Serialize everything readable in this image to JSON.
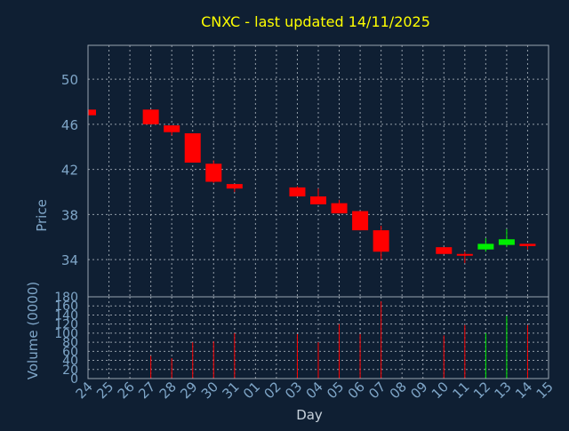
{
  "chart_data": {
    "type": "candlestick",
    "title": "CNXC - last updated 14/11/2025",
    "colors": {
      "background": "#0f1f33",
      "title": "#ffff00",
      "axis_text": "#7fa6c8",
      "label_text": "#c8d2dc",
      "up": "#00ee00",
      "down": "#ff0000"
    },
    "price_panel": {
      "ylabel": "Price",
      "ylim": [
        30.7,
        53.0
      ],
      "yticks": [
        34,
        38,
        42,
        46,
        50
      ]
    },
    "volume_panel": {
      "ylabel": "Volume (0000)",
      "ylim": [
        0,
        180
      ],
      "yticks": [
        0,
        20,
        40,
        60,
        80,
        100,
        120,
        140,
        160,
        180
      ]
    },
    "xlabel": "Day",
    "x_ticks": [
      "24",
      "25",
      "26",
      "27",
      "28",
      "29",
      "30",
      "31",
      "01",
      "02",
      "03",
      "04",
      "05",
      "06",
      "07",
      "08",
      "09",
      "10",
      "11",
      "12",
      "13",
      "14",
      "15"
    ],
    "candles": [
      {
        "day": "24",
        "open": 47.3,
        "high": 47.4,
        "low": 46.8,
        "close": 46.8,
        "volume": 0
      },
      {
        "day": "27",
        "open": 47.3,
        "high": 47.3,
        "low": 46.0,
        "close": 46.0,
        "volume": 50
      },
      {
        "day": "28",
        "open": 45.9,
        "high": 45.9,
        "low": 45.0,
        "close": 45.3,
        "volume": 45
      },
      {
        "day": "29",
        "open": 45.2,
        "high": 45.2,
        "low": 42.6,
        "close": 42.6,
        "volume": 80
      },
      {
        "day": "30",
        "open": 42.5,
        "high": 42.8,
        "low": 40.8,
        "close": 40.9,
        "volume": 82
      },
      {
        "day": "31",
        "open": 40.7,
        "high": 40.7,
        "low": 40.0,
        "close": 40.3,
        "volume": 100
      },
      {
        "day": "03",
        "open": 40.4,
        "high": 40.5,
        "low": 39.6,
        "close": 39.6,
        "volume": 98
      },
      {
        "day": "04",
        "open": 39.6,
        "high": 40.3,
        "low": 38.9,
        "close": 38.9,
        "volume": 80
      },
      {
        "day": "05",
        "open": 39.0,
        "high": 39.3,
        "low": 38.1,
        "close": 38.1,
        "volume": 120
      },
      {
        "day": "06",
        "open": 38.3,
        "high": 38.3,
        "low": 36.6,
        "close": 36.6,
        "volume": 98
      },
      {
        "day": "07",
        "open": 36.6,
        "high": 37.0,
        "low": 34.0,
        "close": 34.7,
        "volume": 170
      },
      {
        "day": "10",
        "open": 35.1,
        "high": 35.1,
        "low": 34.5,
        "close": 34.5,
        "volume": 95
      },
      {
        "day": "11",
        "open": 34.5,
        "high": 34.7,
        "low": 33.7,
        "close": 34.4,
        "volume": 118
      },
      {
        "day": "12",
        "open": 34.9,
        "high": 35.9,
        "low": 34.7,
        "close": 35.4,
        "volume": 100
      },
      {
        "day": "13",
        "open": 35.3,
        "high": 36.7,
        "low": 35.1,
        "close": 35.8,
        "volume": 138
      },
      {
        "day": "14",
        "open": 35.4,
        "high": 35.4,
        "low": 34.9,
        "close": 35.2,
        "volume": 118
      }
    ]
  }
}
